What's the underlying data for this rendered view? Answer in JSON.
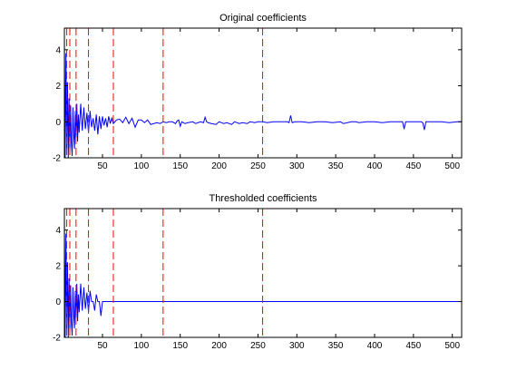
{
  "chart_data": [
    {
      "type": "line",
      "title": "Original coefficients",
      "xlabel": "",
      "ylabel": "",
      "xlim": [
        1,
        512
      ],
      "ylim": [
        -2,
        5.2
      ],
      "xticks": [
        50,
        100,
        150,
        200,
        250,
        300,
        350,
        400,
        450,
        500
      ],
      "yticks": [
        -2,
        0,
        2,
        4
      ],
      "grid": false,
      "series_color": "#0000ff",
      "dashed_line_color": "#ff0000",
      "dashed_lines_x": [
        4,
        8,
        16,
        32,
        64,
        128,
        256
      ],
      "series": [
        {
          "x": [
            1,
            2,
            3,
            4,
            5,
            6,
            7,
            8,
            9,
            10,
            11,
            12,
            13,
            14,
            15,
            16,
            17,
            18,
            19,
            20,
            22,
            24,
            26,
            28,
            30,
            32,
            34,
            36,
            38,
            40,
            42,
            44,
            46,
            48,
            50,
            52,
            54,
            56,
            58,
            60,
            62,
            64,
            68,
            72,
            76,
            80,
            84,
            88,
            92,
            96,
            100,
            104,
            108,
            112,
            116,
            120,
            124,
            128,
            132,
            136,
            140,
            144,
            146,
            148,
            150,
            152,
            156,
            160,
            166,
            170,
            176,
            180,
            182,
            184,
            186,
            190,
            196,
            200,
            206,
            210,
            216,
            220,
            226,
            230,
            236,
            240,
            246,
            250,
            256,
            262,
            270,
            280,
            288,
            290,
            292,
            294,
            298,
            306,
            316,
            326,
            336,
            346,
            356,
            360,
            370,
            376,
            380,
            390,
            400,
            410,
            420,
            430,
            436,
            438,
            440,
            450,
            460,
            462,
            464,
            466,
            476,
            486,
            496,
            506,
            512
          ],
          "y": [
            4.8,
            -2.0,
            3.8,
            -1.5,
            2.2,
            -2.0,
            1.3,
            -1.6,
            0.9,
            -1.2,
            -1.9,
            0.8,
            -0.7,
            -1.5,
            0.6,
            -0.9,
            1.0,
            -1.1,
            0.4,
            -0.6,
            1.0,
            -0.5,
            0.8,
            -0.4,
            0.5,
            -0.6,
            0.6,
            -0.3,
            0.2,
            -0.5,
            0.4,
            -0.7,
            0.3,
            -0.4,
            0.3,
            -0.2,
            0.2,
            -0.3,
            0.3,
            -0.1,
            0.2,
            -0.1,
            0.1,
            0.15,
            -0.05,
            0.25,
            -0.1,
            0.2,
            -0.3,
            0.1,
            0.1,
            -0.05,
            0.1,
            -0.15,
            -0.1,
            -0.05,
            -0.1,
            0.0,
            -0.05,
            0.0,
            0.0,
            -0.1,
            0.05,
            0.1,
            -0.25,
            0.0,
            -0.1,
            -0.05,
            0.0,
            -0.1,
            0.0,
            -0.05,
            0.25,
            0.0,
            -0.05,
            -0.1,
            -0.15,
            0.0,
            -0.1,
            -0.05,
            -0.15,
            0.0,
            -0.1,
            -0.05,
            -0.1,
            0.0,
            -0.05,
            0.0,
            0.0,
            -0.05,
            0.0,
            0.0,
            0.0,
            -0.05,
            0.35,
            -0.05,
            0.0,
            0.0,
            -0.05,
            0.0,
            0.0,
            -0.05,
            0.0,
            -0.1,
            0.0,
            0.0,
            -0.05,
            0.0,
            0.0,
            -0.05,
            0.0,
            0.0,
            0.0,
            -0.4,
            0.0,
            0.0,
            0.0,
            -0.05,
            -0.45,
            0.0,
            0.0,
            0.0,
            -0.05,
            0.0,
            0.0
          ]
        }
      ]
    },
    {
      "type": "line",
      "title": "Thresholded coefficients",
      "xlabel": "",
      "ylabel": "",
      "xlim": [
        1,
        512
      ],
      "ylim": [
        -2,
        5.2
      ],
      "xticks": [
        50,
        100,
        150,
        200,
        250,
        300,
        350,
        400,
        450,
        500
      ],
      "yticks": [
        -2,
        0,
        2,
        4
      ],
      "grid": false,
      "series_color": "#0000ff",
      "dashed_line_color": "#ff0000",
      "dashed_lines_x": [
        4,
        8,
        16,
        32,
        64,
        128,
        256
      ],
      "series": [
        {
          "x": [
            1,
            2,
            3,
            4,
            5,
            6,
            7,
            8,
            9,
            10,
            11,
            12,
            13,
            14,
            15,
            16,
            17,
            18,
            19,
            20,
            22,
            24,
            26,
            28,
            30,
            32,
            34,
            36,
            38,
            40,
            42,
            44,
            46,
            48,
            50,
            60,
            100,
            200,
            300,
            400,
            512
          ],
          "y": [
            4.8,
            -2.0,
            3.8,
            -1.5,
            2.2,
            -2.0,
            1.3,
            -1.6,
            0.9,
            -1.2,
            -1.9,
            0.8,
            -0.7,
            -1.5,
            0.6,
            -0.9,
            1.0,
            -1.1,
            0.4,
            -0.6,
            1.0,
            -0.5,
            0.8,
            -0.4,
            0.5,
            -0.6,
            0.6,
            0.0,
            0.0,
            -0.5,
            0.4,
            0.0,
            0.0,
            -0.8,
            0.0,
            0.0,
            0.0,
            0.0,
            0.0,
            0.0,
            0.0
          ]
        }
      ]
    }
  ]
}
